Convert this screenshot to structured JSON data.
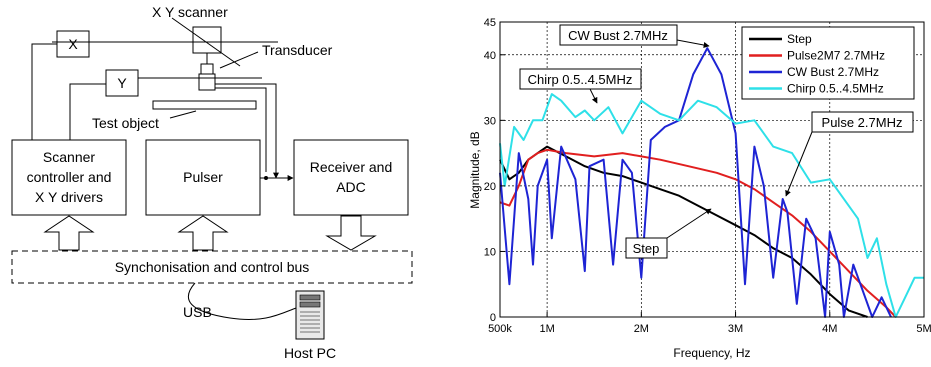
{
  "diagram": {
    "labels": {
      "xy_scanner": "X Y scanner",
      "x_box": "X",
      "y_box": "Y",
      "transducer": "Transducer",
      "test_object": "Test object",
      "scanner_l1": "Scanner",
      "scanner_l2": "controller and",
      "scanner_l3": "X Y drivers",
      "pulser": "Pulser",
      "receiver_l1": "Receiver and",
      "receiver_l2": "ADC",
      "bus": "Synchonisation and control bus",
      "usb": "USB",
      "host_pc": "Host PC"
    }
  },
  "chart_data": {
    "type": "line",
    "xlabel": "Frequency, Hz",
    "ylabel": "Magnitude, dB",
    "xlim": [
      500000,
      5000000
    ],
    "ylim": [
      0,
      45
    ],
    "x_ticks": [
      {
        "v": 500000,
        "label": "500k"
      },
      {
        "v": 1000000,
        "label": "1M"
      },
      {
        "v": 2000000,
        "label": "2M"
      },
      {
        "v": 3000000,
        "label": "3M"
      },
      {
        "v": 4000000,
        "label": "4M"
      },
      {
        "v": 5000000,
        "label": "5M"
      }
    ],
    "y_ticks": [
      0,
      10,
      20,
      30,
      40
    ],
    "y_tick_labels": [
      "0",
      "10",
      "20",
      "30",
      "40"
    ],
    "y_top_label": "45",
    "grid": true,
    "legend_position": "top-right",
    "series": [
      {
        "name": "Step",
        "color": "#000000",
        "x": [
          500000,
          600000,
          700000,
          800000,
          900000,
          1000000,
          1200000,
          1400000,
          1600000,
          1800000,
          2000000,
          2200000,
          2400000,
          2600000,
          2800000,
          3000000,
          3200000,
          3400000,
          3600000,
          3800000,
          4000000,
          4200000,
          4300000,
          4400000
        ],
        "y": [
          24,
          21,
          22,
          24,
          25,
          26,
          24.5,
          23,
          22,
          21.5,
          20.5,
          19.5,
          18.5,
          17,
          15.5,
          14,
          12.5,
          10.5,
          9,
          6.5,
          3.5,
          1,
          0.5,
          0
        ]
      },
      {
        "name": "Pulse2M7 2.7MHz",
        "color": "#e11f1f",
        "x": [
          500000,
          600000,
          700000,
          800000,
          900000,
          1000000,
          1200000,
          1500000,
          1800000,
          2000000,
          2200000,
          2500000,
          2800000,
          3000000,
          3200000,
          3400000,
          3600000,
          3800000,
          4000000,
          4200000,
          4400000,
          4600000,
          4700000
        ],
        "y": [
          17.5,
          17,
          20,
          24,
          25,
          25.5,
          25,
          24.5,
          25,
          24.5,
          24,
          23,
          22,
          21,
          19.5,
          17.5,
          15.5,
          13,
          10,
          7,
          4,
          1.5,
          0
        ]
      },
      {
        "name": "CW Bust 2.7MHz",
        "color": "#1e24d4",
        "x": [
          500000,
          600000,
          700000,
          800000,
          850000,
          900000,
          1000000,
          1050000,
          1150000,
          1300000,
          1400000,
          1450000,
          1600000,
          1700000,
          1800000,
          1900000,
          2000000,
          2100000,
          2250000,
          2400000,
          2550000,
          2700000,
          2850000,
          3000000,
          3100000,
          3200000,
          3300000,
          3400000,
          3500000,
          3550000,
          3650000,
          3750000,
          3850000,
          3950000,
          4000000,
          4100000,
          4150000,
          4250000,
          4350000,
          4450000,
          4550000,
          4650000
        ],
        "y": [
          22,
          5,
          25,
          18,
          8,
          20,
          24,
          12,
          26,
          21,
          7,
          23,
          24,
          8,
          24,
          22,
          6,
          27,
          29,
          30,
          37,
          41,
          37,
          28,
          5,
          26,
          20,
          6,
          18,
          16,
          2,
          15,
          12,
          0,
          13,
          8,
          0,
          8,
          4,
          0,
          3,
          0
        ]
      },
      {
        "name": "Chirp 0.5..4.5MHz",
        "color": "#2ee0e8",
        "x": [
          500000,
          550000,
          650000,
          750000,
          850000,
          950000,
          1050000,
          1150000,
          1300000,
          1400000,
          1500000,
          1650000,
          1800000,
          2000000,
          2200000,
          2400000,
          2600000,
          2800000,
          3000000,
          3200000,
          3400000,
          3600000,
          3800000,
          4000000,
          4200000,
          4300000,
          4400000,
          4500000,
          4600000,
          4700000,
          4800000,
          4900000,
          5000000
        ],
        "y": [
          26.5,
          20,
          29,
          27,
          30,
          30,
          34,
          33,
          30.5,
          31.5,
          30,
          32,
          28,
          33,
          31,
          30,
          33,
          32,
          29.5,
          30,
          26,
          25,
          20.5,
          21,
          17,
          15,
          9,
          12,
          5,
          0,
          3,
          6,
          6
        ]
      }
    ],
    "annotations": [
      {
        "text": "CW Bust 2.7MHz"
      },
      {
        "text": "Chirp 0.5..4.5MHz"
      },
      {
        "text": "Pulse 2.7MHz"
      },
      {
        "text": "Step"
      }
    ]
  }
}
